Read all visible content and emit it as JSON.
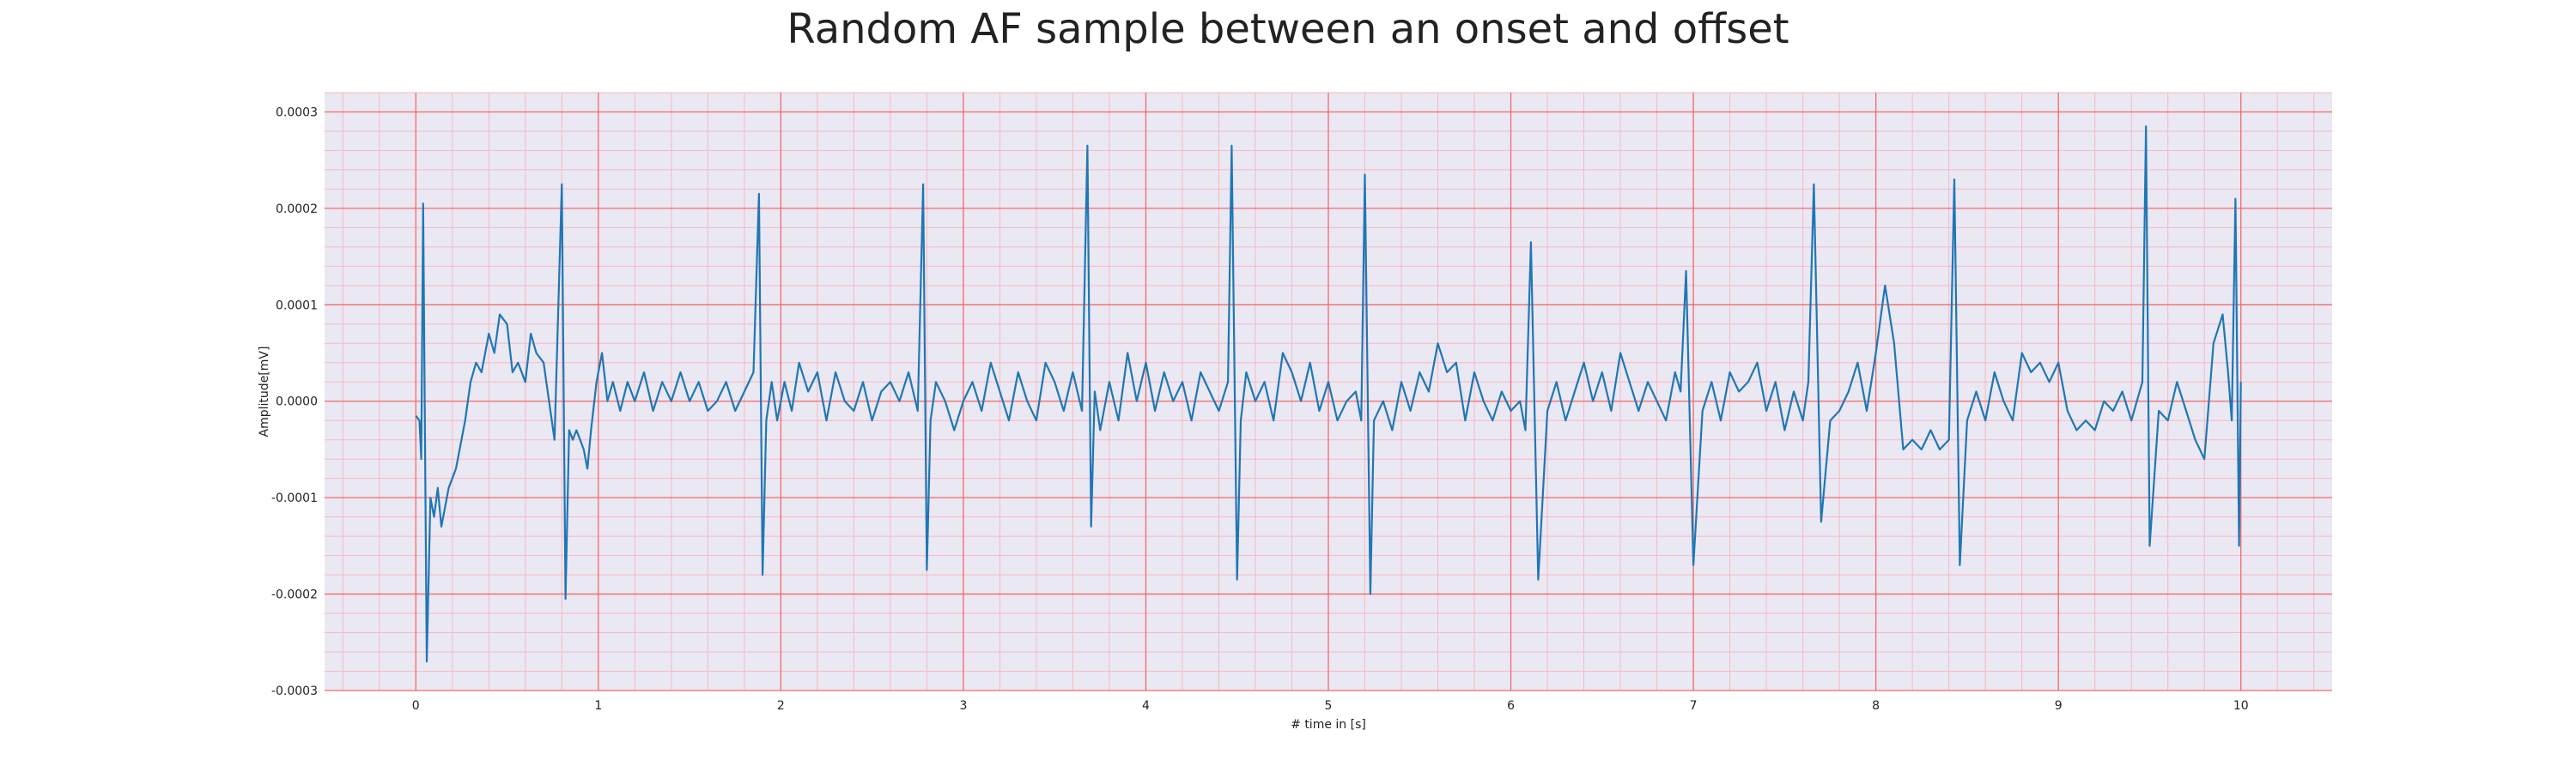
{
  "chart_data": {
    "type": "line",
    "title": "Random AF sample between an onset and offset",
    "xlabel": "# time in [s]",
    "ylabel": "Amplitude[mV]",
    "xlim": [
      -0.5,
      10.5
    ],
    "ylim": [
      -0.0003,
      0.00032
    ],
    "xticks": [
      0,
      1,
      2,
      3,
      4,
      5,
      6,
      7,
      8,
      9,
      10
    ],
    "xtick_labels": [
      "0",
      "1",
      "2",
      "3",
      "4",
      "5",
      "6",
      "7",
      "8",
      "9",
      "10"
    ],
    "yticks": [
      -0.0003,
      -0.0002,
      -0.0001,
      0.0,
      0.0001,
      0.0002,
      0.0003
    ],
    "ytick_labels": [
      "-0.0003",
      "-0.0002",
      "-0.0001",
      "0.0000",
      "0.0001",
      "0.0002",
      "0.0003"
    ],
    "grid": true,
    "major_grid_color": "#f06a6a",
    "minor_grid_color": "#f7b9c3",
    "background_color": "#eae8f2",
    "series": [
      {
        "color": "#1f77b4",
        "x": [
          0.0,
          0.02,
          0.03,
          0.04,
          0.06,
          0.08,
          0.1,
          0.12,
          0.14,
          0.16,
          0.18,
          0.2,
          0.22,
          0.24,
          0.27,
          0.3,
          0.33,
          0.36,
          0.4,
          0.43,
          0.46,
          0.5,
          0.53,
          0.56,
          0.6,
          0.63,
          0.66,
          0.7,
          0.73,
          0.76,
          0.8,
          0.82,
          0.84,
          0.86,
          0.88,
          0.9,
          0.92,
          0.94,
          0.96,
          0.99,
          1.02,
          1.05,
          1.08,
          1.12,
          1.16,
          1.2,
          1.25,
          1.3,
          1.35,
          1.4,
          1.45,
          1.5,
          1.55,
          1.6,
          1.65,
          1.7,
          1.75,
          1.8,
          1.85,
          1.88,
          1.9,
          1.92,
          1.95,
          1.98,
          2.02,
          2.06,
          2.1,
          2.15,
          2.2,
          2.25,
          2.3,
          2.35,
          2.4,
          2.45,
          2.5,
          2.55,
          2.6,
          2.65,
          2.7,
          2.75,
          2.78,
          2.8,
          2.82,
          2.85,
          2.9,
          2.95,
          3.0,
          3.05,
          3.1,
          3.15,
          3.2,
          3.25,
          3.3,
          3.35,
          3.4,
          3.45,
          3.5,
          3.55,
          3.6,
          3.65,
          3.68,
          3.7,
          3.72,
          3.75,
          3.8,
          3.85,
          3.9,
          3.95,
          4.0,
          4.05,
          4.1,
          4.15,
          4.2,
          4.25,
          4.3,
          4.35,
          4.4,
          4.45,
          4.47,
          4.5,
          4.52,
          4.55,
          4.6,
          4.65,
          4.7,
          4.75,
          4.8,
          4.85,
          4.9,
          4.95,
          5.0,
          5.05,
          5.1,
          5.15,
          5.18,
          5.2,
          5.23,
          5.25,
          5.3,
          5.35,
          5.4,
          5.45,
          5.5,
          5.55,
          5.6,
          5.65,
          5.7,
          5.75,
          5.8,
          5.85,
          5.9,
          5.95,
          6.0,
          6.05,
          6.08,
          6.11,
          6.15,
          6.2,
          6.25,
          6.3,
          6.35,
          6.4,
          6.45,
          6.5,
          6.55,
          6.6,
          6.65,
          6.7,
          6.75,
          6.8,
          6.85,
          6.9,
          6.93,
          6.96,
          7.0,
          7.05,
          7.1,
          7.15,
          7.2,
          7.25,
          7.3,
          7.35,
          7.4,
          7.45,
          7.5,
          7.55,
          7.6,
          7.63,
          7.66,
          7.7,
          7.75,
          7.8,
          7.85,
          7.9,
          7.95,
          8.0,
          8.05,
          8.1,
          8.15,
          8.2,
          8.25,
          8.3,
          8.35,
          8.4,
          8.43,
          8.46,
          8.5,
          8.55,
          8.6,
          8.65,
          8.7,
          8.75,
          8.8,
          8.85,
          8.9,
          8.95,
          9.0,
          9.05,
          9.1,
          9.15,
          9.2,
          9.25,
          9.3,
          9.35,
          9.4,
          9.43,
          9.46,
          9.48,
          9.5,
          9.55,
          9.6,
          9.65,
          9.7,
          9.75,
          9.8,
          9.85,
          9.9,
          9.93,
          9.95,
          9.97,
          9.99,
          10.0
        ],
        "y": [
          -1.5e-05,
          -2e-05,
          -6e-05,
          0.000205,
          -0.00027,
          -0.0001,
          -0.00012,
          -9e-05,
          -0.00013,
          -0.00011,
          -9e-05,
          -8e-05,
          -7e-05,
          -5e-05,
          -2e-05,
          2e-05,
          4e-05,
          3e-05,
          7e-05,
          5e-05,
          9e-05,
          8e-05,
          3e-05,
          4e-05,
          2e-05,
          7e-05,
          5e-05,
          4e-05,
          0.0,
          -4e-05,
          0.000225,
          -0.000205,
          -3e-05,
          -4e-05,
          -3e-05,
          -4e-05,
          -5e-05,
          -7e-05,
          -3e-05,
          2e-05,
          5e-05,
          0.0,
          2e-05,
          -1e-05,
          2e-05,
          0.0,
          3e-05,
          -1e-05,
          2e-05,
          0.0,
          3e-05,
          0.0,
          2e-05,
          -1e-05,
          0.0,
          2e-05,
          -1e-05,
          1e-05,
          3e-05,
          0.000215,
          -0.00018,
          -2e-05,
          2e-05,
          -2e-05,
          2e-05,
          -1e-05,
          4e-05,
          1e-05,
          3e-05,
          -2e-05,
          3e-05,
          0.0,
          -1e-05,
          2e-05,
          -2e-05,
          1e-05,
          2e-05,
          0.0,
          3e-05,
          -1e-05,
          0.000225,
          -0.000175,
          -2e-05,
          2e-05,
          0.0,
          -3e-05,
          0.0,
          2e-05,
          -1e-05,
          4e-05,
          1e-05,
          -2e-05,
          3e-05,
          0.0,
          -2e-05,
          4e-05,
          2e-05,
          -1e-05,
          3e-05,
          -1e-05,
          0.000265,
          -0.00013,
          1e-05,
          -3e-05,
          2e-05,
          -2e-05,
          5e-05,
          0.0,
          4e-05,
          -1e-05,
          3e-05,
          0.0,
          2e-05,
          -2e-05,
          3e-05,
          1e-05,
          -1e-05,
          2e-05,
          0.000265,
          -0.000185,
          -2e-05,
          3e-05,
          0.0,
          2e-05,
          -2e-05,
          5e-05,
          3e-05,
          0.0,
          4e-05,
          -1e-05,
          2e-05,
          -2e-05,
          0.0,
          1e-05,
          -2e-05,
          0.000235,
          -0.0002,
          -2e-05,
          0.0,
          -3e-05,
          2e-05,
          -1e-05,
          3e-05,
          1e-05,
          6e-05,
          3e-05,
          4e-05,
          -2e-05,
          3e-05,
          0.0,
          -2e-05,
          1e-05,
          -1e-05,
          0.0,
          -3e-05,
          0.000165,
          -0.000185,
          -1e-05,
          2e-05,
          -2e-05,
          1e-05,
          4e-05,
          0.0,
          3e-05,
          -1e-05,
          5e-05,
          2e-05,
          -1e-05,
          2e-05,
          0.0,
          -2e-05,
          3e-05,
          1e-05,
          0.000135,
          -0.00017,
          -1e-05,
          2e-05,
          -2e-05,
          3e-05,
          1e-05,
          2e-05,
          4e-05,
          -1e-05,
          2e-05,
          -3e-05,
          1e-05,
          -2e-05,
          2e-05,
          0.000225,
          -0.000125,
          -2e-05,
          -1e-05,
          1e-05,
          4e-05,
          -1e-05,
          5e-05,
          0.00012,
          6e-05,
          -5e-05,
          -4e-05,
          -5e-05,
          -3e-05,
          -5e-05,
          -4e-05,
          0.00023,
          -0.00017,
          -2e-05,
          1e-05,
          -2e-05,
          3e-05,
          0.0,
          -2e-05,
          5e-05,
          3e-05,
          4e-05,
          2e-05,
          4e-05,
          -1e-05,
          -3e-05,
          -2e-05,
          -3e-05,
          0.0,
          -1e-05,
          1e-05,
          -2e-05,
          0.0,
          2e-05,
          0.000285,
          -0.00015,
          -1e-05,
          -2e-05,
          2e-05,
          -1e-05,
          -4e-05,
          -6e-05,
          6e-05,
          9e-05,
          3e-05,
          -2e-05,
          0.00021,
          -0.00015,
          2e-05
        ]
      }
    ]
  }
}
